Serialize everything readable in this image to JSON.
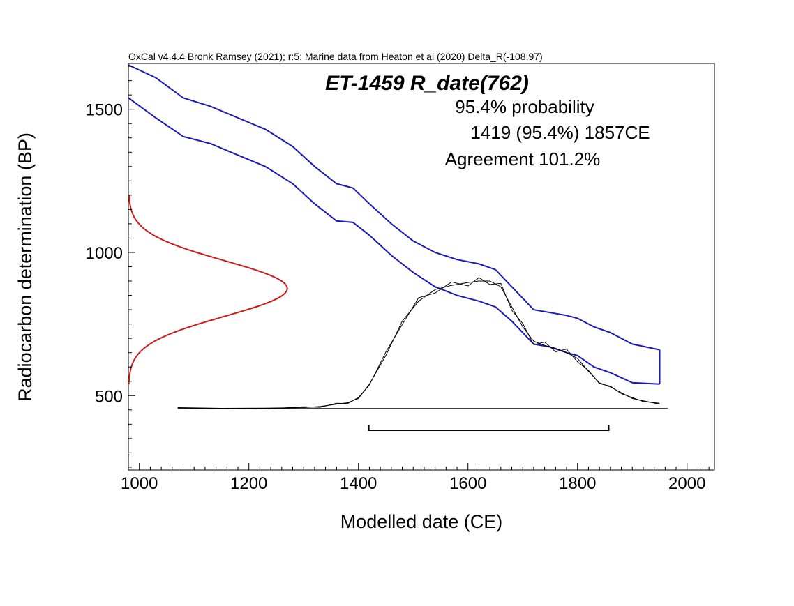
{
  "header": "OxCal v4.4.4 Bronk Ramsey (2021); r:5; Marine data from Heaton et al (2020) Delta_R(-108,97)",
  "sample_label": "ET-1459 R_date(762)",
  "result": {
    "probability": "95.4% probability",
    "range": "1419 (95.4%) 1857CE",
    "agreement": "Agreement 101.2%"
  },
  "chart_data": {
    "type": "line",
    "xlabel": "Modelled date (CE)",
    "ylabel": "Radiocarbon determination (BP)",
    "xlim": [
      980,
      2050
    ],
    "ylim": [
      240,
      1660
    ],
    "x_ticks": [
      1000,
      1200,
      1400,
      1600,
      1800,
      2000
    ],
    "y_ticks": [
      500,
      1000,
      1500
    ],
    "grid": false,
    "series": [
      {
        "kind": "calibration-curve-upper",
        "color": "#1a1ab8",
        "x": [
          980,
          1030,
          1080,
          1130,
          1180,
          1230,
          1280,
          1320,
          1360,
          1390,
          1420,
          1460,
          1500,
          1540,
          1580,
          1620,
          1650,
          1680,
          1700,
          1720,
          1750,
          1780,
          1800,
          1830,
          1860,
          1900,
          1950
        ],
        "y": [
          1655,
          1610,
          1540,
          1510,
          1470,
          1430,
          1370,
          1300,
          1240,
          1225,
          1170,
          1100,
          1040,
          1000,
          975,
          960,
          940,
          880,
          840,
          800,
          790,
          780,
          770,
          740,
          720,
          680,
          660
        ]
      },
      {
        "kind": "calibration-curve-lower",
        "color": "#1a1ab8",
        "x": [
          980,
          1030,
          1080,
          1130,
          1180,
          1230,
          1280,
          1320,
          1360,
          1390,
          1420,
          1460,
          1500,
          1540,
          1580,
          1620,
          1650,
          1680,
          1700,
          1720,
          1750,
          1780,
          1800,
          1830,
          1860,
          1900,
          1950
        ],
        "y": [
          1540,
          1470,
          1405,
          1380,
          1340,
          1300,
          1240,
          1170,
          1110,
          1105,
          1060,
          990,
          930,
          880,
          850,
          830,
          810,
          760,
          720,
          680,
          670,
          650,
          640,
          600,
          580,
          545,
          540
        ]
      },
      {
        "kind": "radiocarbon-determination",
        "color": "#cc1a1a",
        "mean_bp": 874,
        "sigma_bp": 97
      },
      {
        "kind": "calibrated-distribution",
        "color": "#000000",
        "baseline_bp": 455,
        "x": [
          1070,
          1230,
          1300,
          1330,
          1360,
          1380,
          1400,
          1420,
          1450,
          1480,
          1510,
          1540,
          1570,
          1600,
          1620,
          1640,
          1660,
          1680,
          1700,
          1720,
          1740,
          1760,
          1780,
          1800,
          1820,
          1840,
          1860,
          1880,
          1900,
          1920,
          1950
        ],
        "y_bp": [
          455,
          456,
          458,
          462,
          470,
          475,
          490,
          540,
          640,
          760,
          830,
          870,
          885,
          895,
          900,
          900,
          880,
          810,
          740,
          690,
          675,
          665,
          650,
          630,
          585,
          545,
          530,
          510,
          490,
          482,
          470
        ]
      }
    ],
    "range_bar": {
      "from": 1419,
      "to": 1857,
      "probability": "95.4%"
    }
  }
}
